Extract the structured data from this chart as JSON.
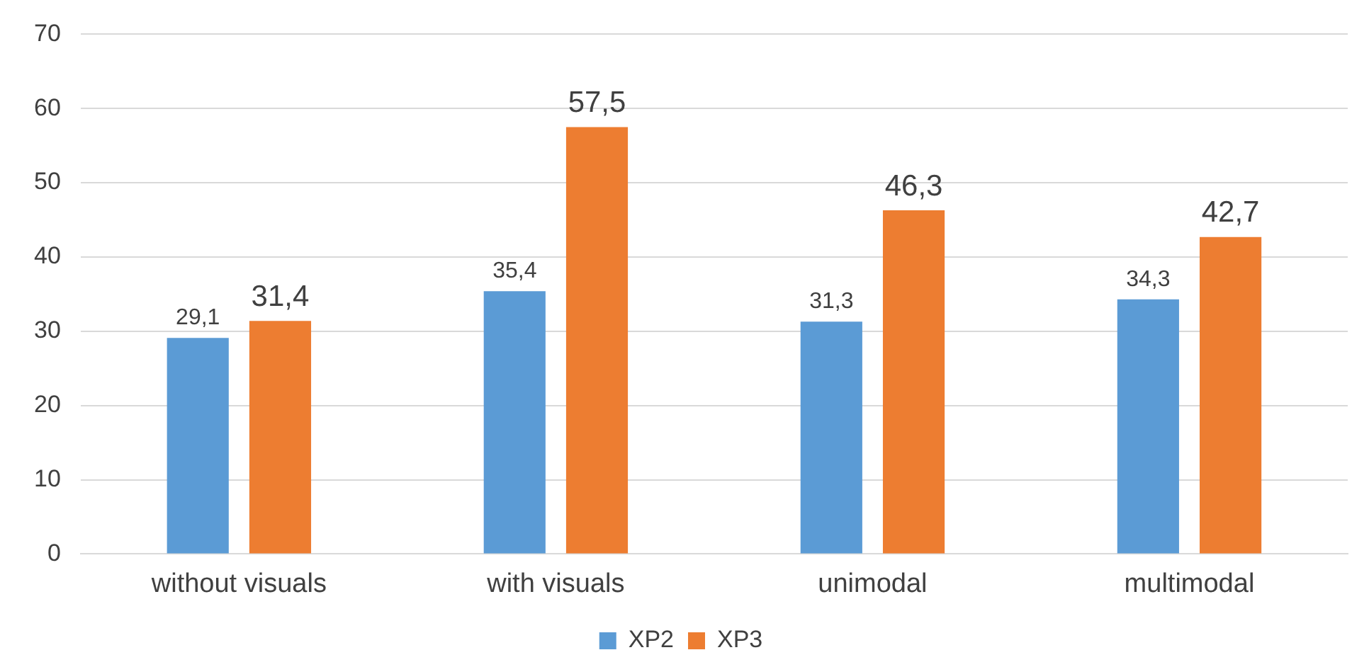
{
  "chart_data": {
    "type": "bar",
    "categories": [
      "without visuals",
      "with visuals",
      "unimodal",
      "multimodal"
    ],
    "series": [
      {
        "name": "XP2",
        "color": "#5b9bd5",
        "values": [
          29.1,
          35.4,
          31.3,
          34.3
        ],
        "value_labels": [
          "29,1",
          "35,4",
          "31,3",
          "34,3"
        ]
      },
      {
        "name": "XP3",
        "color": "#ed7d31",
        "values": [
          31.4,
          57.5,
          46.3,
          42.7
        ],
        "value_labels": [
          "31,4",
          "57,5",
          "46,3",
          "42,7"
        ]
      }
    ],
    "ylim": [
      0,
      70
    ],
    "yticks": [
      0,
      10,
      20,
      30,
      40,
      50,
      60,
      70
    ],
    "grid": "y",
    "legend": "bottom"
  }
}
